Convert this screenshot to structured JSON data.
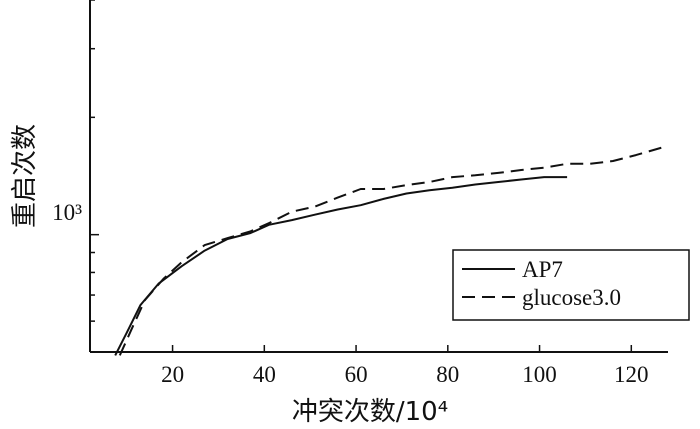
{
  "chart_data": {
    "type": "line",
    "xlabel": "冲突次数/10⁴",
    "ylabel": "重启次数",
    "x_ticks": [
      20,
      40,
      60,
      80,
      100,
      120
    ],
    "y_tick_label": "10³",
    "y_scale": "log",
    "xlim": [
      2,
      128
    ],
    "ylim": [
      500,
      4000
    ],
    "grid": false,
    "legend_position": "bottom-right",
    "series": [
      {
        "name": "AP7",
        "style": "solid",
        "points": [
          [
            7.5,
            490
          ],
          [
            10,
            560
          ],
          [
            13,
            660
          ],
          [
            17,
            750
          ],
          [
            22,
            830
          ],
          [
            27,
            910
          ],
          [
            32,
            975
          ],
          [
            37,
            1010
          ],
          [
            41,
            1060
          ],
          [
            46,
            1090
          ],
          [
            51,
            1125
          ],
          [
            56,
            1160
          ],
          [
            61,
            1190
          ],
          [
            66,
            1235
          ],
          [
            71,
            1275
          ],
          [
            76,
            1300
          ],
          [
            81,
            1320
          ],
          [
            86,
            1345
          ],
          [
            91,
            1365
          ],
          [
            96,
            1385
          ],
          [
            101,
            1405
          ],
          [
            106,
            1405
          ]
        ]
      },
      {
        "name": "glucose3.0",
        "style": "dashed",
        "points": [
          [
            8.5,
            490
          ],
          [
            11,
            570
          ],
          [
            14,
            680
          ],
          [
            18,
            770
          ],
          [
            22,
            850
          ],
          [
            27,
            940
          ],
          [
            32,
            980
          ],
          [
            37,
            1020
          ],
          [
            41,
            1070
          ],
          [
            46,
            1145
          ],
          [
            51,
            1180
          ],
          [
            56,
            1245
          ],
          [
            61,
            1310
          ],
          [
            66,
            1310
          ],
          [
            71,
            1340
          ],
          [
            76,
            1365
          ],
          [
            81,
            1405
          ],
          [
            86,
            1420
          ],
          [
            91,
            1440
          ],
          [
            96,
            1465
          ],
          [
            101,
            1485
          ],
          [
            106,
            1520
          ],
          [
            111,
            1520
          ],
          [
            116,
            1545
          ],
          [
            121,
            1600
          ],
          [
            128,
            1690
          ]
        ]
      }
    ]
  }
}
